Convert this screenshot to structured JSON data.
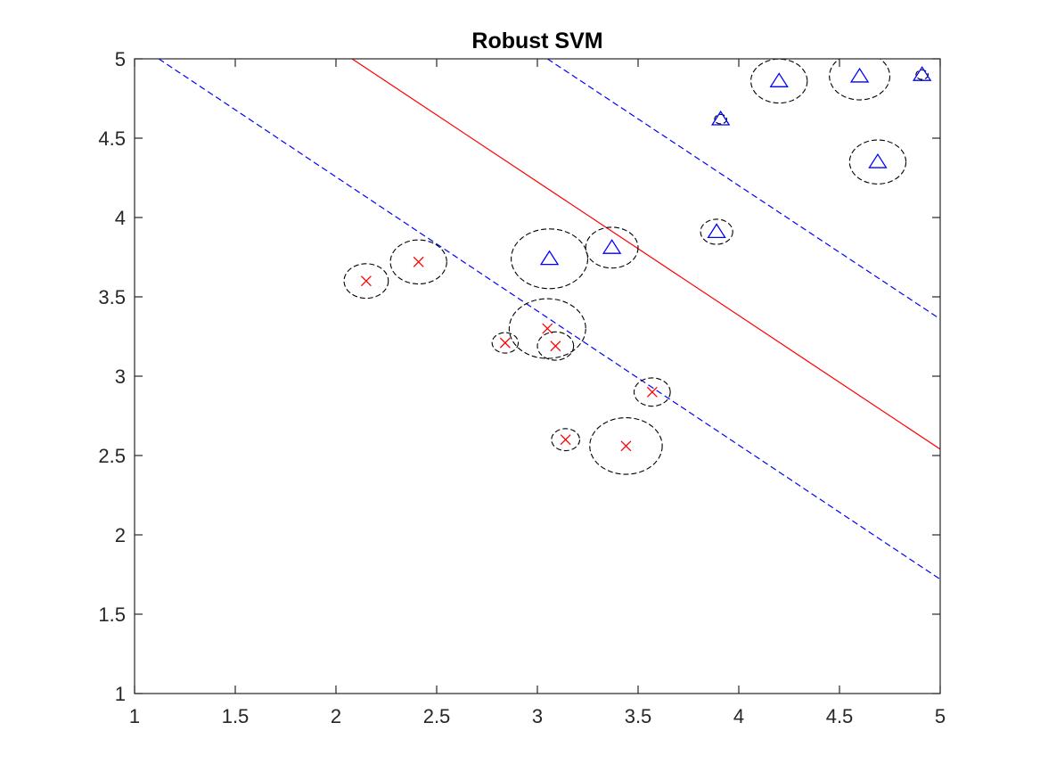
{
  "chart_data": {
    "type": "scatter",
    "title": "Robust SVM",
    "xlabel": "",
    "ylabel": "",
    "xlim": [
      1,
      5
    ],
    "ylim": [
      1,
      5
    ],
    "x_ticks": [
      1,
      1.5,
      2,
      2.5,
      3,
      3.5,
      4,
      4.5,
      5
    ],
    "y_ticks": [
      1,
      1.5,
      2,
      2.5,
      3,
      3.5,
      4,
      4.5,
      5
    ],
    "x_tick_labels": [
      "1",
      "1.5",
      "2",
      "2.5",
      "3",
      "3.5",
      "4",
      "4.5",
      "5"
    ],
    "y_tick_labels": [
      "1",
      "1.5",
      "2",
      "2.5",
      "3",
      "3.5",
      "4",
      "4.5",
      "5"
    ],
    "grid": false,
    "series": [
      {
        "marker": "x",
        "color": "#ff0000",
        "points": [
          {
            "x": 2.15,
            "y": 3.6,
            "r": 0.11
          },
          {
            "x": 2.41,
            "y": 3.72,
            "r": 0.14
          },
          {
            "x": 2.84,
            "y": 3.21,
            "r": 0.065
          },
          {
            "x": 3.05,
            "y": 3.3,
            "r": 0.19
          },
          {
            "x": 3.09,
            "y": 3.19,
            "r": 0.09
          },
          {
            "x": 3.57,
            "y": 2.9,
            "r": 0.09
          },
          {
            "x": 3.14,
            "y": 2.6,
            "r": 0.07
          },
          {
            "x": 3.44,
            "y": 2.56,
            "r": 0.18
          }
        ]
      },
      {
        "marker": "triangle",
        "color": "#0000ff",
        "points": [
          {
            "x": 3.06,
            "y": 3.74,
            "r": 0.19
          },
          {
            "x": 3.37,
            "y": 3.81,
            "r": 0.13
          },
          {
            "x": 3.89,
            "y": 3.91,
            "r": 0.08
          },
          {
            "x": 3.91,
            "y": 4.62,
            "r": 0.03
          },
          {
            "x": 4.2,
            "y": 4.86,
            "r": 0.14
          },
          {
            "x": 4.6,
            "y": 4.89,
            "r": 0.15
          },
          {
            "x": 4.69,
            "y": 4.35,
            "r": 0.14
          },
          {
            "x": 4.91,
            "y": 4.9,
            "r": 0.03
          }
        ]
      }
    ],
    "uncertainty_ellipse_color": "#000000",
    "lines": [
      {
        "role": "decision-boundary",
        "style": "solid",
        "color": "#ff0000",
        "x": [
          2.08,
          5.0
        ],
        "y": [
          5.0,
          2.54
        ]
      },
      {
        "role": "margin-upper",
        "style": "dashed",
        "color": "#0000ff",
        "x": [
          3.05,
          5.0
        ],
        "y": [
          5.0,
          3.36
        ]
      },
      {
        "role": "margin-lower",
        "style": "dashed",
        "color": "#0000ff",
        "x": [
          1.12,
          5.0
        ],
        "y": [
          5.0,
          1.72
        ]
      }
    ]
  }
}
